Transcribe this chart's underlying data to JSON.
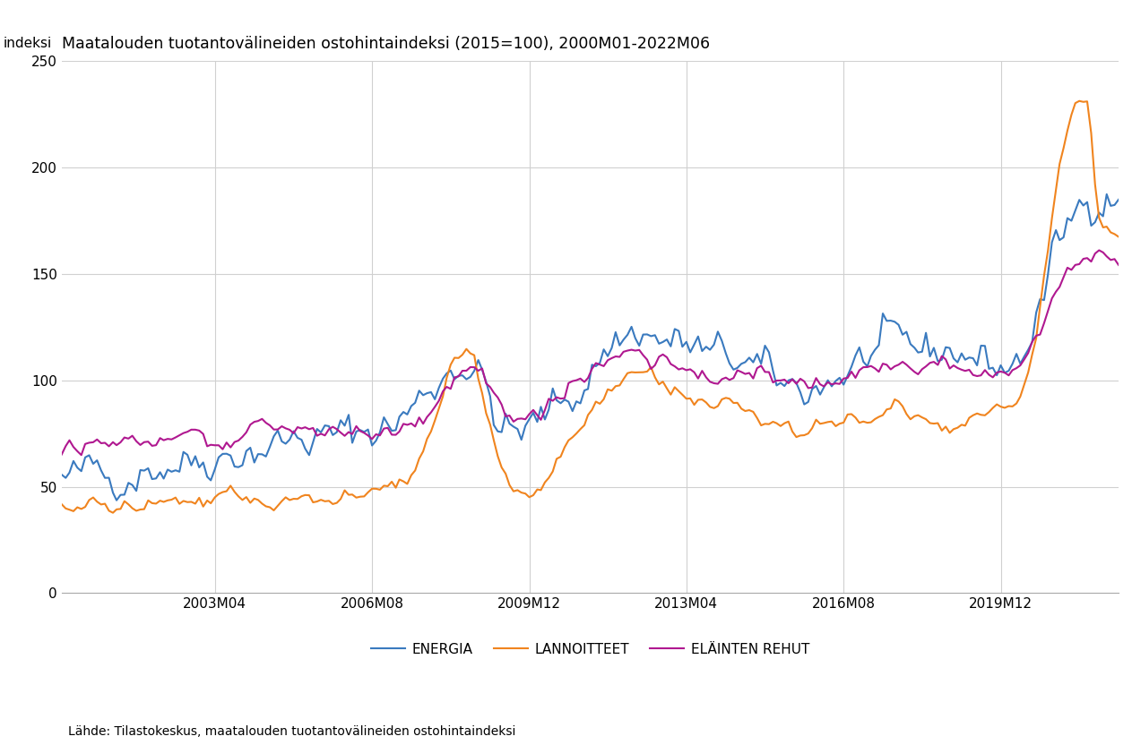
{
  "title": "Maatalouden tuotantovälineiden ostohintaindeksi (2015=100), 2000M01-2022M06",
  "ylabel": "indeksi",
  "source": "Lähde: Tilastokeskus, maatalouden tuotantovälineiden ostohintaindeksi",
  "colors": {
    "ENERGIA": "#3a7abf",
    "LANNOITTEET": "#f0841e",
    "ELÄINTEN REHUT": "#b01890"
  },
  "ylim": [
    0,
    250
  ],
  "yticks": [
    0,
    50,
    100,
    150,
    200,
    250
  ],
  "xtick_labels": [
    "2003M04",
    "2006M08",
    "2009M12",
    "2013M04",
    "2016M08",
    "2019M12"
  ],
  "background_color": "#ffffff",
  "grid_color": "#d0d0d0"
}
